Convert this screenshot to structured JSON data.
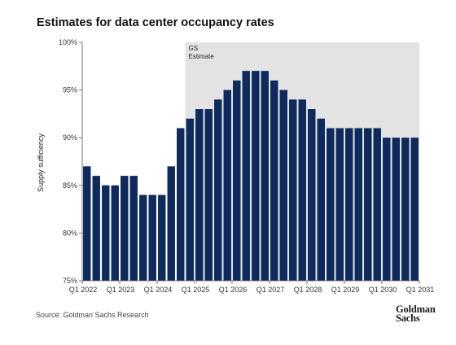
{
  "chart_data": {
    "type": "bar",
    "title": "Estimates for data center occupancy rates",
    "ylabel": "Supply sufficiency",
    "xlabel": "",
    "ylim": [
      75,
      100
    ],
    "yticks": [
      "75%",
      "80%",
      "85%",
      "90%",
      "95%",
      "100%"
    ],
    "ytick_values": [
      75,
      80,
      85,
      90,
      95,
      100
    ],
    "xtick_labels": [
      "Q1 2022",
      "Q1 2023",
      "Q1 2024",
      "Q1 2025",
      "Q1 2026",
      "Q1 2027",
      "Q1 2028",
      "Q1 2029",
      "Q1 2030",
      "Q1 2031"
    ],
    "categories": [
      "Q1 2022",
      "Q2 2022",
      "Q3 2022",
      "Q4 2022",
      "Q1 2023",
      "Q2 2023",
      "Q3 2023",
      "Q4 2023",
      "Q1 2024",
      "Q2 2024",
      "Q3 2024",
      "Q4 2024",
      "Q1 2025",
      "Q2 2025",
      "Q3 2025",
      "Q4 2025",
      "Q1 2026",
      "Q2 2026",
      "Q3 2026",
      "Q4 2026",
      "Q1 2027",
      "Q2 2027",
      "Q3 2027",
      "Q4 2027",
      "Q1 2028",
      "Q2 2028",
      "Q3 2028",
      "Q4 2028",
      "Q1 2029",
      "Q2 2029",
      "Q3 2029",
      "Q4 2029",
      "Q1 2030",
      "Q2 2030",
      "Q3 2030",
      "Q4 2030"
    ],
    "values": [
      87,
      86,
      85,
      85,
      86,
      86,
      84,
      84,
      84,
      87,
      91,
      92,
      93,
      93,
      94,
      95,
      96,
      97,
      97,
      97,
      96,
      95,
      94,
      94,
      93,
      92,
      91,
      91,
      91,
      91,
      91,
      91,
      90,
      90,
      90,
      90
    ],
    "estimate_start": "Q4 2024",
    "estimate_label": "GS Estimate",
    "bar_color": "#0f2a5c",
    "shade_color": "#e3e3e3",
    "grid": false,
    "legend": "none"
  },
  "source": "Source: Goldman Sachs Research",
  "logo_text": "Goldman Sachs"
}
